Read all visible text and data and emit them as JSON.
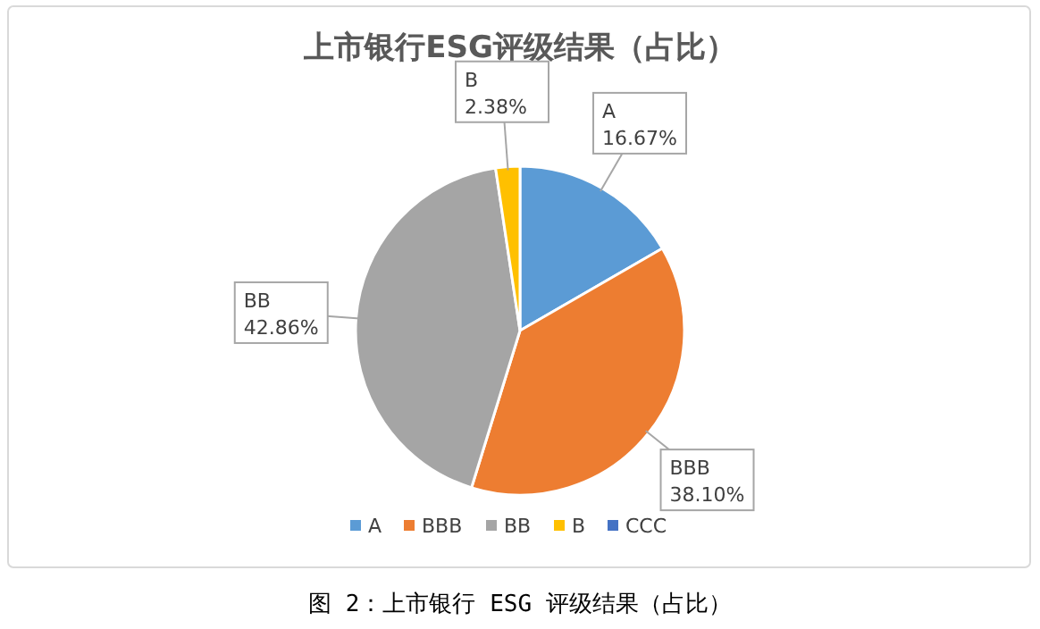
{
  "chart_data": {
    "type": "pie",
    "title": "上市银行ESG评级结果（占比）",
    "categories": [
      "A",
      "BBB",
      "BB",
      "B",
      "CCC"
    ],
    "values": [
      16.67,
      38.1,
      42.86,
      2.38,
      0
    ],
    "colors": [
      "#5b9bd5",
      "#ed7d31",
      "#a5a5a5",
      "#ffc000",
      "#4472c4"
    ],
    "value_labels": [
      "16.67%",
      "38.10%",
      "42.86%",
      "2.38%",
      null
    ],
    "legend": "bottom",
    "annotations": [
      "图 2：上市银行 ESG 评级结果（占比）"
    ]
  }
}
